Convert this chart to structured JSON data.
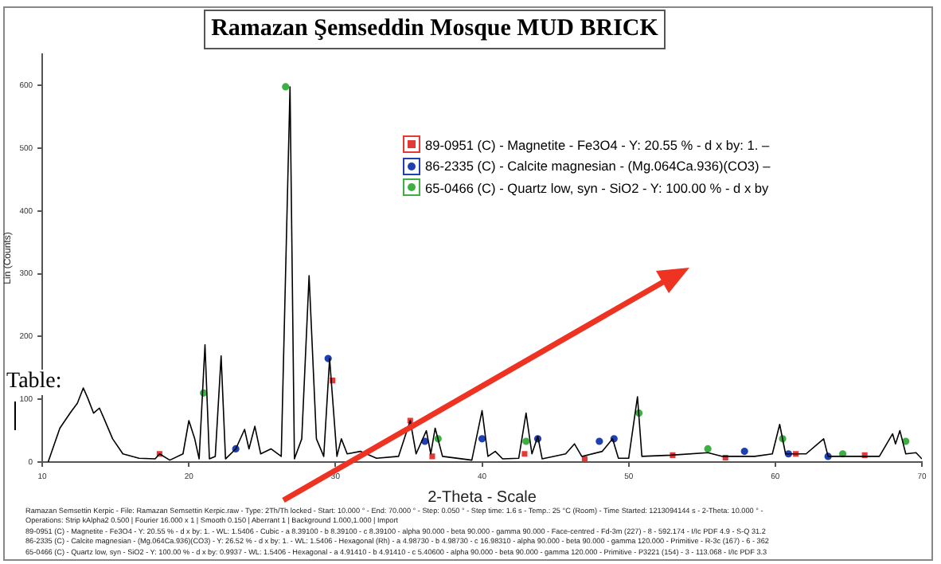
{
  "chart_data": {
    "type": "line",
    "title": "Ramazan Şemseddin Mosque MUD BRICK",
    "xlabel": "2-Theta - Scale",
    "ylabel": "Lin (Counts)",
    "xlim": [
      10,
      70
    ],
    "xticks": [
      10,
      20,
      30,
      40,
      50,
      60,
      70
    ],
    "ylim": [
      0,
      650
    ],
    "yticks": [
      0,
      100,
      200,
      300,
      400,
      500,
      600
    ],
    "grid": false,
    "legend": "right",
    "series": [
      {
        "color": "#000000",
        "marker": "none",
        "x": [
          10.4,
          11.2,
          11.9,
          12.4,
          12.8,
          13.1,
          13.5,
          13.9,
          14.2,
          14.8,
          15.5,
          16.6,
          17.7,
          18.0,
          18.7,
          19.6,
          20.0,
          20.4,
          20.7,
          21.1,
          21.4,
          21.8,
          22.2,
          22.5,
          23.2,
          23.8,
          24.1,
          24.5,
          24.9,
          25.6,
          26.3,
          26.9,
          27.2,
          27.7,
          28.2,
          28.7,
          29.2,
          29.6,
          30.1,
          30.4,
          30.8,
          31.7,
          32.8,
          34.3,
          35.1,
          35.5,
          36.2,
          36.5,
          36.8,
          37.3,
          39.3,
          40.0,
          40.4,
          40.9,
          41.4,
          42.5,
          43.0,
          43.4,
          43.8,
          44.1,
          45.7,
          46.3,
          46.8,
          48.2,
          48.9,
          49.3,
          50.0,
          50.6,
          50.9,
          52.9,
          55.4,
          56.4,
          58.6,
          59.8,
          60.3,
          60.7,
          62.1,
          63.3,
          63.6,
          65.7,
          67.1,
          68.0,
          68.2,
          68.5,
          68.9,
          69.6,
          70.0
        ],
        "values": [
          0,
          54,
          78,
          94,
          118,
          102,
          78,
          86,
          70,
          37,
          13,
          6,
          5,
          13,
          3,
          13,
          66,
          37,
          5,
          187,
          5,
          9,
          169,
          5,
          21,
          52,
          21,
          57,
          13,
          21,
          9,
          598,
          5,
          37,
          297,
          37,
          9,
          165,
          9,
          37,
          13,
          17,
          6,
          9,
          66,
          13,
          50,
          13,
          54,
          9,
          3,
          82,
          9,
          17,
          5,
          6,
          78,
          13,
          41,
          5,
          13,
          29,
          9,
          17,
          37,
          6,
          6,
          104,
          9,
          11,
          15,
          9,
          9,
          13,
          60,
          13,
          13,
          37,
          9,
          9,
          9,
          45,
          29,
          50,
          13,
          15,
          5
        ]
      },
      {
        "type": "scatter",
        "name": "89-0951 (C) - Magnetite - Fe3O4 - Y: 20.55 % - d x by: 1. –",
        "color": "#e53935",
        "marker": "square",
        "x": [
          18.0,
          29.8,
          35.1,
          36.6,
          42.9,
          47.0,
          53.0,
          56.6,
          61.4,
          66.1
        ],
        "values": [
          13,
          130,
          66,
          9,
          13,
          5,
          11,
          7,
          13,
          11
        ]
      },
      {
        "type": "scatter",
        "name": "86-2335 (C) - Calcite magnesian - (Mg.064Ca.936)(CO3) –",
        "color": "#1e40b0",
        "marker": "circle",
        "x": [
          23.2,
          29.5,
          31.7,
          36.1,
          40.0,
          43.8,
          48.0,
          49.0,
          57.9,
          60.9,
          63.6
        ],
        "values": [
          21,
          165,
          null,
          33,
          37,
          37,
          33,
          37,
          17,
          13,
          9
        ]
      },
      {
        "type": "scatter",
        "name": "65-0466 (C) - Quartz low, syn - SiO2 - Y: 100.00 % - d x by",
        "color": "#3cb043",
        "marker": "circle",
        "x": [
          21.0,
          26.6,
          37.0,
          43.0,
          50.7,
          55.4,
          60.5,
          64.6,
          68.9
        ],
        "values": [
          110,
          598,
          37,
          33,
          78,
          21,
          37,
          13,
          33
        ]
      }
    ],
    "annotations": [
      "Table:",
      "Ramazan Semsettin Kerpic - File: Ramazan Semsettin Kerpic.raw - Type: 2Th/Th locked - Start: 10.000 ° - End: 70.000 ° - Step: 0.050 ° - Step time: 1.6 s - Temp.: 25 °C (Room) - Time Started: 1213094144 s - 2-Theta: 10.000 ° -",
      "Operations: Strip kAlpha2 0.500 | Fourier 16.000 x 1 | Smooth 0.150 | Aberrant 1 | Background 1.000,1.000 | Import",
      "89-0951 (C) - Magnetite - Fe3O4 - Y: 20.55 % - d x by: 1. - WL: 1.5406 - Cubic - a 8.39100 - b 8.39100 - c 8.39100 - alpha 90.000 - beta 90.000 - gamma 90.000 - Face-centred - Fd-3m (227) - 8 - 592.174 - I/Ic PDF 4.9 - S-Q 31.2",
      "86-2335 (C) - Calcite magnesian - (Mg.064Ca.936)(CO3) - Y: 26.52 % - d x by: 1. - WL: 1.5406 - Hexagonal (Rh) - a 4.98730 - b 4.98730 - c 16.98310 - alpha 90.000 - beta 90.000 - gamma 120.000 - Primitive - R-3c (167) - 6 - 362",
      "65-0466 (C) - Quartz low, syn - SiO2 - Y: 100.00 % - d x by: 0.9937 - WL: 1.5406 - Hexagonal - a 4.91410 - b 4.91410 - c 5.40600 - alpha 90.000 - beta 90.000 - gamma 120.000 - Primitive - P3221 (154) - 3 - 113.068 - I/Ic PDF 3.3"
    ]
  }
}
